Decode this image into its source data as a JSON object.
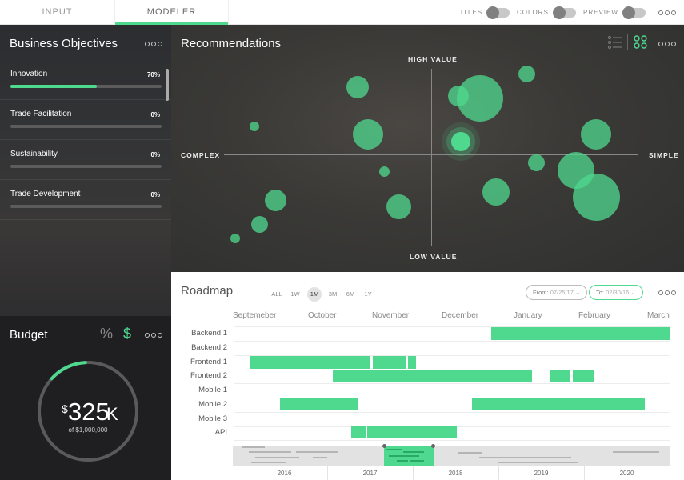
{
  "tabs": [
    {
      "label": "INPUT"
    },
    {
      "label": "MODELER"
    }
  ],
  "toggles": [
    {
      "label": "TITLES"
    },
    {
      "label": "COLORS"
    },
    {
      "label": "PREVIEW"
    }
  ],
  "objectives": {
    "title": "Business Objectives",
    "items": [
      {
        "label": "Innovation",
        "pct": "70%",
        "value": 0.7
      },
      {
        "label": "Trade Facilitation",
        "pct": "0%",
        "value": 0
      },
      {
        "label": "Sustainability",
        "pct": "0%",
        "value": 0
      },
      {
        "label": "Trade Development",
        "pct": "0%",
        "value": 0
      }
    ]
  },
  "budget": {
    "title": "Budget",
    "percent_icon": "%",
    "dollar_icon": "$",
    "currency": "$",
    "amount": "325",
    "suffix": "K",
    "sub": "of $1,000,000",
    "fraction": 0.325
  },
  "recommendations": {
    "title": "Recommendations",
    "labels": {
      "top": "HIGH VALUE",
      "bottom": "LOW VALUE",
      "left": "COMPLEX",
      "right": "SIMPLE"
    },
    "accent": "#4fd98f"
  },
  "roadmap": {
    "title": "Roadmap",
    "ranges": [
      "ALL",
      "1W",
      "1M",
      "3M",
      "6M",
      "1Y"
    ],
    "active_range": "1M",
    "from_label": "From:",
    "from_date": "07/25/17",
    "to_label": "To:",
    "to_date": "02/30/16",
    "months": [
      "Septemeber",
      "October",
      "November",
      "December",
      "January",
      "February",
      "March"
    ],
    "rows": [
      "Backend 1",
      "Backend 2",
      "Frontend 1",
      "Frontend 2",
      "Mobile 1",
      "Mobile 2",
      "Mobile 3",
      "API"
    ],
    "years": [
      "2016",
      "2017",
      "2018",
      "2019",
      "2020"
    ]
  }
}
